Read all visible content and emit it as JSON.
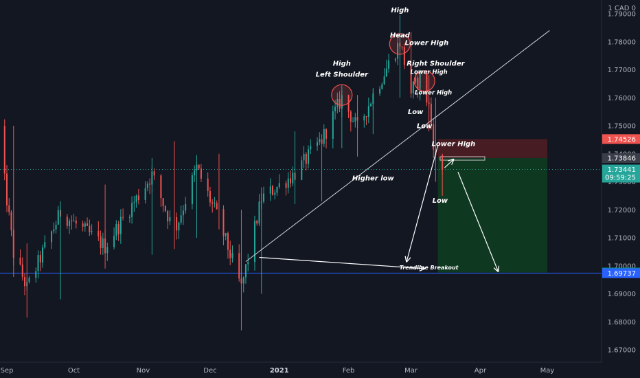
{
  "colors": {
    "background": "#131722",
    "up": "#26a69a",
    "down": "#ef5350",
    "axis_text": "#b2b5be",
    "stop_zone": "#4a1d24",
    "target_zone": "#0f3a22",
    "support_line": "#2962ff",
    "dotted_line": "#26a69a"
  },
  "chart_data": {
    "type": "candlestick",
    "currency": "1 CAD 0",
    "x_ticks": [
      "Sep",
      "Oct",
      "Nov",
      "Dec",
      "2021",
      "Feb",
      "Mar",
      "Apr",
      "May"
    ],
    "y_ticks": [
      "1.79000",
      "1.78000",
      "1.77000",
      "1.76000",
      "1.75000",
      "1.74000",
      "1.73000",
      "1.72000",
      "1.71000",
      "1.70000",
      "1.69000",
      "1.68000",
      "1.67000"
    ],
    "ylim": [
      1.6625,
      1.7995
    ],
    "grid": false,
    "price_tags": [
      {
        "value": "1.74526",
        "price": 1.74526,
        "color": "#ef5350"
      },
      {
        "value": "1.73846",
        "price": 1.73846,
        "color": "#3a3e48"
      },
      {
        "value": "1.73441",
        "price": 1.73441,
        "color": "#26a69a",
        "sub": "09:59:25"
      },
      {
        "value": "1.69761",
        "price": 1.69761,
        "color": "#089981"
      },
      {
        "value": "1.69737",
        "price": 1.69737,
        "color": "#2962ff"
      }
    ],
    "levels": {
      "support": 1.6974,
      "current": 1.73441,
      "entry": 1.73846,
      "stop": 1.74526,
      "target": 1.69761
    },
    "annotations": [
      {
        "text": "High",
        "date": "2021-01-29",
        "price": 1.7715
      },
      {
        "text": "Left Shoulder",
        "date": "2021-01-29",
        "price": 1.7675
      },
      {
        "text": "High",
        "date": "2021-02-24",
        "price": 1.7905
      },
      {
        "text": "Head",
        "date": "2021-02-24",
        "price": 1.7815
      },
      {
        "text": "Lower High",
        "date": "2021-03-08",
        "price": 1.7788
      },
      {
        "text": "Right Shoulder",
        "date": "2021-03-12",
        "price": 1.7715
      },
      {
        "text": "Lower High",
        "date": "2021-03-09",
        "price": 1.7685
      },
      {
        "text": "Lower High",
        "date": "2021-03-11",
        "price": 1.7612
      },
      {
        "text": "Low",
        "date": "2021-03-03",
        "price": 1.7542
      },
      {
        "text": "Low",
        "date": "2021-03-07",
        "price": 1.7492
      },
      {
        "text": "Lower High",
        "date": "2021-03-20",
        "price": 1.7428
      },
      {
        "text": "Higher low",
        "date": "2021-02-12",
        "price": 1.7305
      },
      {
        "text": "Low",
        "date": "2021-03-14",
        "price": 1.7225
      },
      {
        "text": "Trendline Breakout",
        "date": "2021-03-09",
        "price": 1.6987
      }
    ],
    "candles_summary": [
      {
        "date": "2020-08-28",
        "open": 1.7472,
        "close": 1.749,
        "high": 1.7555,
        "low": 1.742
      },
      {
        "date": "2020-09-04",
        "open": 1.749,
        "close": 1.7045,
        "high": 1.75,
        "low": 1.696
      },
      {
        "date": "2020-09-10",
        "open": 1.7045,
        "close": 1.692,
        "high": 1.708,
        "low": 1.6815
      },
      {
        "date": "2020-09-25",
        "open": 1.692,
        "close": 1.719,
        "high": 1.723,
        "low": 1.688
      },
      {
        "date": "2020-10-15",
        "open": 1.719,
        "close": 1.707,
        "high": 1.729,
        "low": 1.699
      },
      {
        "date": "2020-11-05",
        "open": 1.707,
        "close": 1.7325,
        "high": 1.7385,
        "low": 1.704
      },
      {
        "date": "2020-11-15",
        "open": 1.7325,
        "close": 1.712,
        "high": 1.7445,
        "low": 1.706
      },
      {
        "date": "2020-11-25",
        "open": 1.712,
        "close": 1.735,
        "high": 1.7395,
        "low": 1.71
      },
      {
        "date": "2020-12-05",
        "open": 1.735,
        "close": 1.716,
        "high": 1.74,
        "low": 1.713
      },
      {
        "date": "2020-12-15",
        "open": 1.716,
        "close": 1.692,
        "high": 1.72,
        "low": 1.677
      },
      {
        "date": "2020-12-24",
        "open": 1.692,
        "close": 1.724,
        "high": 1.728,
        "low": 1.69
      },
      {
        "date": "2021-01-08",
        "open": 1.724,
        "close": 1.733,
        "high": 1.748,
        "low": 1.722
      },
      {
        "date": "2021-01-20",
        "open": 1.733,
        "close": 1.745,
        "high": 1.747,
        "low": 1.723
      },
      {
        "date": "2021-01-29",
        "open": 1.745,
        "close": 1.76,
        "high": 1.7645,
        "low": 1.742
      },
      {
        "date": "2021-02-05",
        "open": 1.76,
        "close": 1.749,
        "high": 1.761,
        "low": 1.739
      },
      {
        "date": "2021-02-12",
        "open": 1.749,
        "close": 1.761,
        "high": 1.763,
        "low": 1.747
      },
      {
        "date": "2021-02-24",
        "open": 1.761,
        "close": 1.78,
        "high": 1.7895,
        "low": 1.76
      },
      {
        "date": "2021-03-01",
        "open": 1.78,
        "close": 1.762,
        "high": 1.7835,
        "low": 1.76
      },
      {
        "date": "2021-03-05",
        "open": 1.762,
        "close": 1.767,
        "high": 1.77,
        "low": 1.759
      },
      {
        "date": "2021-03-09",
        "open": 1.767,
        "close": 1.757,
        "high": 1.768,
        "low": 1.748
      },
      {
        "date": "2021-03-12",
        "open": 1.757,
        "close": 1.738,
        "high": 1.76,
        "low": 1.73
      },
      {
        "date": "2021-03-15",
        "open": 1.738,
        "close": 1.7344,
        "high": 1.7395,
        "low": 1.725
      }
    ]
  }
}
